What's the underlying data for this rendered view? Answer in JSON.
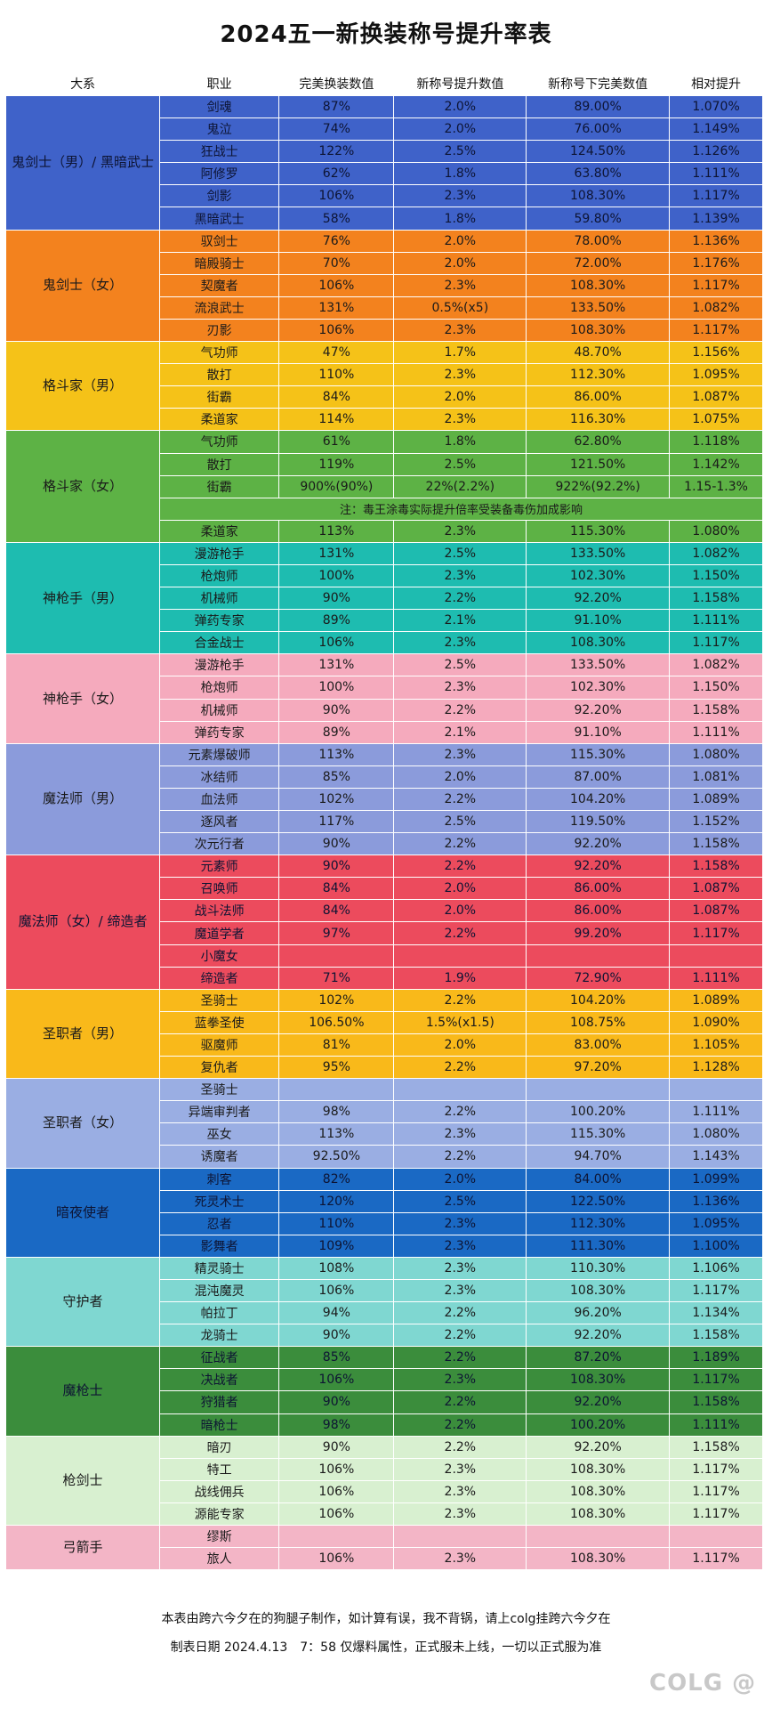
{
  "title": "2024五一新换装称号提升率表",
  "headers": [
    "大系",
    "职业",
    "完美换装数值",
    "新称号提升数值",
    "新称号下完美数值",
    "相对提升"
  ],
  "groups": [
    {
      "name": "鬼剑士（男）/ 黑暗武士",
      "color": "#3f62c9",
      "rows": [
        [
          "剑魂",
          "87%",
          "2.0%",
          "89.00%",
          "1.070%"
        ],
        [
          "鬼泣",
          "74%",
          "2.0%",
          "76.00%",
          "1.149%"
        ],
        [
          "狂战士",
          "122%",
          "2.5%",
          "124.50%",
          "1.126%"
        ],
        [
          "阿修罗",
          "62%",
          "1.8%",
          "63.80%",
          "1.111%"
        ],
        [
          "剑影",
          "106%",
          "2.3%",
          "108.30%",
          "1.117%"
        ],
        [
          "黑暗武士",
          "58%",
          "1.8%",
          "59.80%",
          "1.139%"
        ]
      ]
    },
    {
      "name": "鬼剑士（女）",
      "color": "#f3821e",
      "rows": [
        [
          "驭剑士",
          "76%",
          "2.0%",
          "78.00%",
          "1.136%"
        ],
        [
          "暗殿骑士",
          "70%",
          "2.0%",
          "72.00%",
          "1.176%"
        ],
        [
          "契魔者",
          "106%",
          "2.3%",
          "108.30%",
          "1.117%"
        ],
        [
          "流浪武士",
          "131%",
          "0.5%(x5)",
          "133.50%",
          "1.082%"
        ],
        [
          "刃影",
          "106%",
          "2.3%",
          "108.30%",
          "1.117%"
        ]
      ]
    },
    {
      "name": "格斗家（男）",
      "color": "#f5c218",
      "rows": [
        [
          "气功师",
          "47%",
          "1.7%",
          "48.70%",
          "1.156%"
        ],
        [
          "散打",
          "110%",
          "2.3%",
          "112.30%",
          "1.095%"
        ],
        [
          "街霸",
          "84%",
          "2.0%",
          "86.00%",
          "1.087%"
        ],
        [
          "柔道家",
          "114%",
          "2.3%",
          "116.30%",
          "1.075%"
        ]
      ]
    },
    {
      "name": "格斗家（女）",
      "color": "#5db245",
      "rows": [
        [
          "气功师",
          "61%",
          "1.8%",
          "62.80%",
          "1.118%"
        ],
        [
          "散打",
          "119%",
          "2.5%",
          "121.50%",
          "1.142%"
        ],
        [
          "街霸",
          "900%(90%)",
          "22%(2.2%)",
          "922%(92.2%)",
          "1.15-1.3%"
        ],
        {
          "note": "注：毒王涂毒实际提升倍率受装备毒伤加成影响"
        },
        [
          "柔道家",
          "113%",
          "2.3%",
          "115.30%",
          "1.080%"
        ]
      ]
    },
    {
      "name": "神枪手（男）",
      "color": "#1ebcb0",
      "rows": [
        [
          "漫游枪手",
          "131%",
          "2.5%",
          "133.50%",
          "1.082%"
        ],
        [
          "枪炮师",
          "100%",
          "2.3%",
          "102.30%",
          "1.150%"
        ],
        [
          "机械师",
          "90%",
          "2.2%",
          "92.20%",
          "1.158%"
        ],
        [
          "弹药专家",
          "89%",
          "2.1%",
          "91.10%",
          "1.111%"
        ],
        [
          "合金战士",
          "106%",
          "2.3%",
          "108.30%",
          "1.117%"
        ]
      ]
    },
    {
      "name": "神枪手（女）",
      "color": "#f5aabd",
      "rows": [
        [
          "漫游枪手",
          "131%",
          "2.5%",
          "133.50%",
          "1.082%"
        ],
        [
          "枪炮师",
          "100%",
          "2.3%",
          "102.30%",
          "1.150%"
        ],
        [
          "机械师",
          "90%",
          "2.2%",
          "92.20%",
          "1.158%"
        ],
        [
          "弹药专家",
          "89%",
          "2.1%",
          "91.10%",
          "1.111%"
        ]
      ]
    },
    {
      "name": "魔法师（男）",
      "color": "#8b9bdb",
      "rows": [
        [
          "元素爆破师",
          "113%",
          "2.3%",
          "115.30%",
          "1.080%"
        ],
        [
          "冰结师",
          "85%",
          "2.0%",
          "87.00%",
          "1.081%"
        ],
        [
          "血法师",
          "102%",
          "2.2%",
          "104.20%",
          "1.089%"
        ],
        [
          "逐风者",
          "117%",
          "2.5%",
          "119.50%",
          "1.152%"
        ],
        [
          "次元行者",
          "90%",
          "2.2%",
          "92.20%",
          "1.158%"
        ]
      ]
    },
    {
      "name": "魔法师（女）/ 缔造者",
      "color": "#ec4b5d",
      "rows": [
        [
          "元素师",
          "90%",
          "2.2%",
          "92.20%",
          "1.158%"
        ],
        [
          "召唤师",
          "84%",
          "2.0%",
          "86.00%",
          "1.087%"
        ],
        [
          "战斗法师",
          "84%",
          "2.0%",
          "86.00%",
          "1.087%"
        ],
        [
          "魔道学者",
          "97%",
          "2.2%",
          "99.20%",
          "1.117%"
        ],
        [
          "小魔女",
          "",
          "",
          "",
          ""
        ],
        [
          "缔造者",
          "71%",
          "1.9%",
          "72.90%",
          "1.111%"
        ]
      ]
    },
    {
      "name": "圣职者（男）",
      "color": "#f9b91a",
      "rows": [
        [
          "圣骑士",
          "102%",
          "2.2%",
          "104.20%",
          "1.089%"
        ],
        [
          "蓝拳圣使",
          "106.50%",
          "1.5%(x1.5)",
          "108.75%",
          "1.090%"
        ],
        [
          "驱魔师",
          "81%",
          "2.0%",
          "83.00%",
          "1.105%"
        ],
        [
          "复仇者",
          "95%",
          "2.2%",
          "97.20%",
          "1.128%"
        ]
      ]
    },
    {
      "name": "圣职者（女）",
      "color": "#9aaee3",
      "rows": [
        [
          "圣骑士",
          "",
          "",
          "",
          ""
        ],
        [
          "异端审判者",
          "98%",
          "2.2%",
          "100.20%",
          "1.111%"
        ],
        [
          "巫女",
          "113%",
          "2.3%",
          "115.30%",
          "1.080%"
        ],
        [
          "诱魔者",
          "92.50%",
          "2.2%",
          "94.70%",
          "1.143%"
        ]
      ]
    },
    {
      "name": "暗夜使者",
      "color": "#1a69c4",
      "rows": [
        [
          "刺客",
          "82%",
          "2.0%",
          "84.00%",
          "1.099%"
        ],
        [
          "死灵术士",
          "120%",
          "2.5%",
          "122.50%",
          "1.136%"
        ],
        [
          "忍者",
          "110%",
          "2.3%",
          "112.30%",
          "1.095%"
        ],
        [
          "影舞者",
          "109%",
          "2.3%",
          "111.30%",
          "1.100%"
        ]
      ]
    },
    {
      "name": "守护者",
      "color": "#7fd7d1",
      "rows": [
        [
          "精灵骑士",
          "108%",
          "2.3%",
          "110.30%",
          "1.106%"
        ],
        [
          "混沌魔灵",
          "106%",
          "2.3%",
          "108.30%",
          "1.117%"
        ],
        [
          "帕拉丁",
          "94%",
          "2.2%",
          "96.20%",
          "1.134%"
        ],
        [
          "龙骑士",
          "90%",
          "2.2%",
          "92.20%",
          "1.158%"
        ]
      ]
    },
    {
      "name": "魔枪士",
      "color": "#3b8d3c",
      "rows": [
        [
          "征战者",
          "85%",
          "2.2%",
          "87.20%",
          "1.189%"
        ],
        [
          "决战者",
          "106%",
          "2.3%",
          "108.30%",
          "1.117%"
        ],
        [
          "狩猎者",
          "90%",
          "2.2%",
          "92.20%",
          "1.158%"
        ],
        [
          "暗枪士",
          "98%",
          "2.2%",
          "100.20%",
          "1.111%"
        ]
      ]
    },
    {
      "name": "枪剑士",
      "color": "#d8f0d0",
      "rows": [
        [
          "暗刃",
          "90%",
          "2.2%",
          "92.20%",
          "1.158%"
        ],
        [
          "特工",
          "106%",
          "2.3%",
          "108.30%",
          "1.117%"
        ],
        [
          "战线佣兵",
          "106%",
          "2.3%",
          "108.30%",
          "1.117%"
        ],
        [
          "源能专家",
          "106%",
          "2.3%",
          "108.30%",
          "1.117%"
        ]
      ]
    },
    {
      "name": "弓箭手",
      "color": "#f3b5c6",
      "rows": [
        [
          "缪斯",
          "",
          "",
          "",
          ""
        ],
        [
          "旅人",
          "106%",
          "2.3%",
          "108.30%",
          "1.117%"
        ]
      ]
    }
  ],
  "footer": {
    "line1": "本表由跨六今夕在的狗腿子制作，如计算有误，我不背锅，请上colg挂跨六今夕在",
    "line2": "制表日期 2024.4.13　7：58 仅爆料属性，正式服未上线，一切以正式服为准"
  },
  "logo": "COLG @"
}
